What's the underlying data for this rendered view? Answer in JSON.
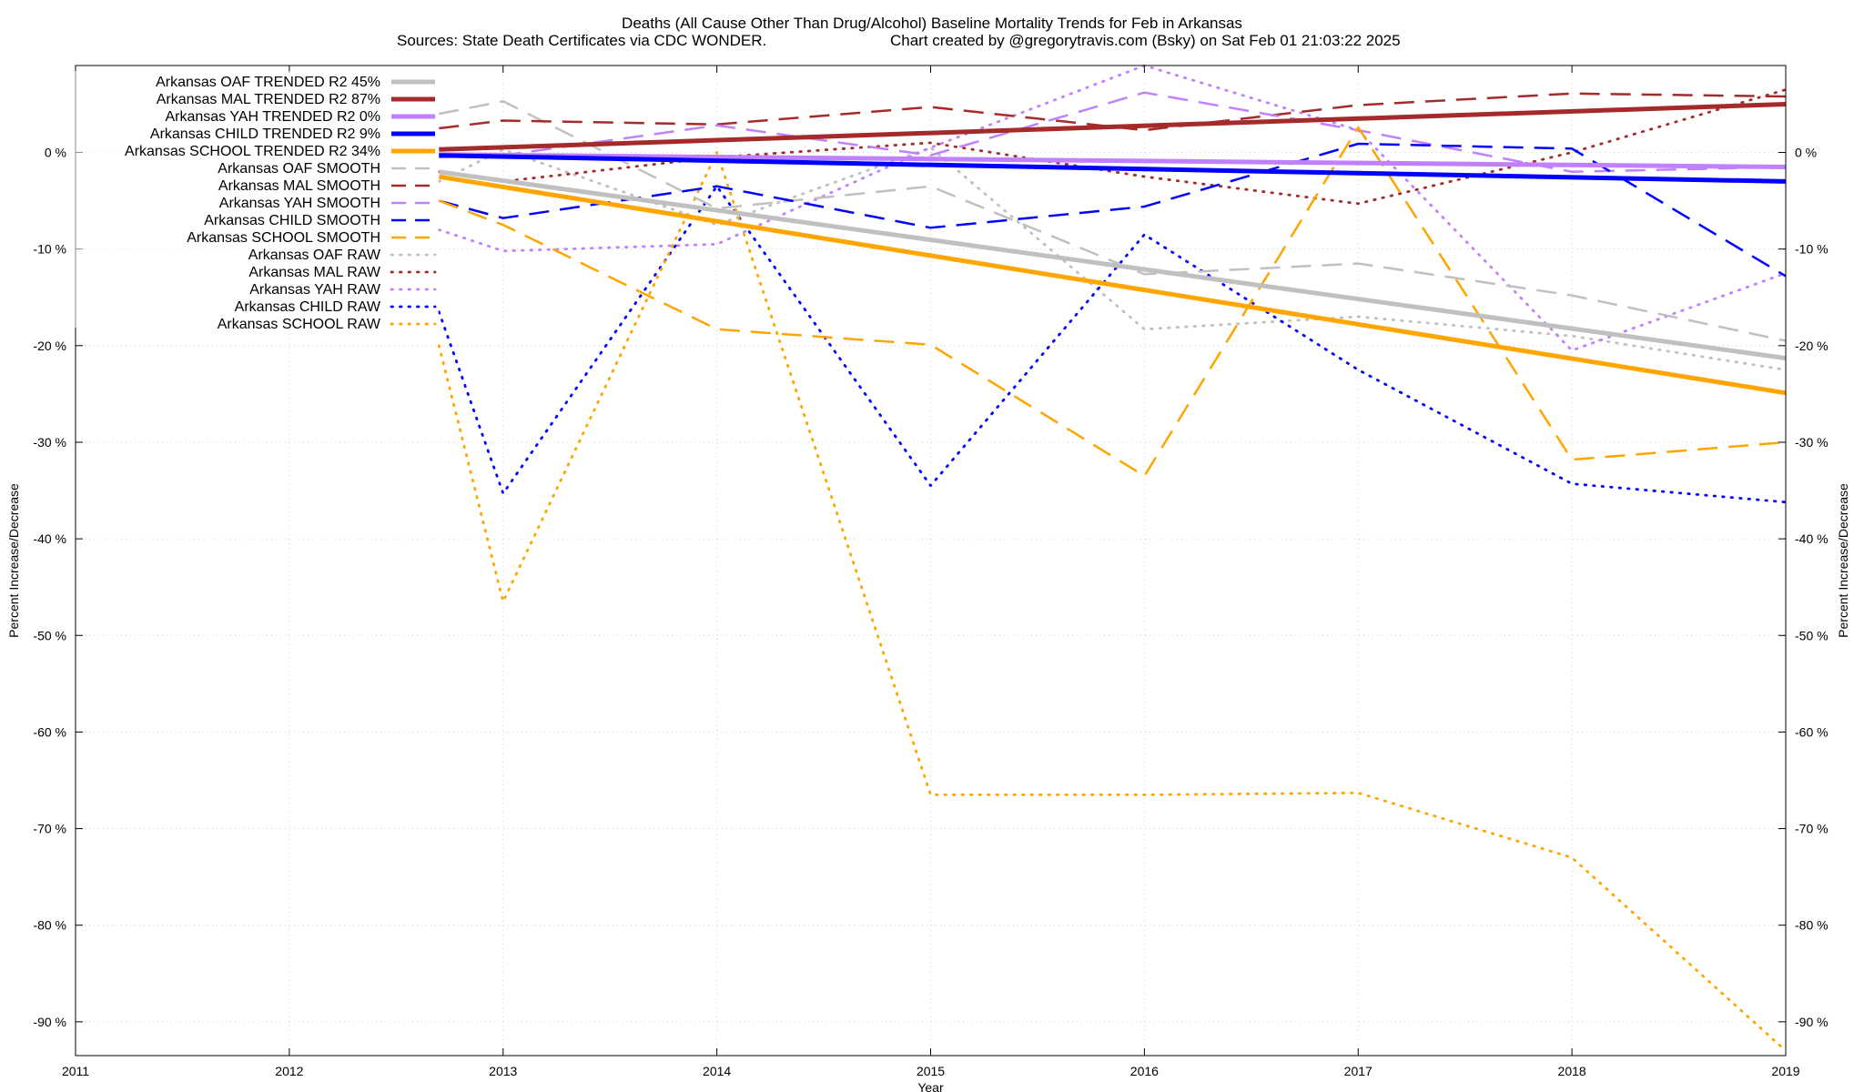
{
  "chart_data": {
    "type": "line",
    "title": "Deaths (All Cause Other Than Drug/Alcohol)  Baseline Mortality Trends for Feb in Arkansas",
    "subtitle_left": "Sources: State Death Certificates via CDC WONDER.",
    "subtitle_right": "Chart created by @gregorytravis.com (Bsky) on Sat Feb 01 21:03:22 2025",
    "xlabel": "Year",
    "ylabel": "Percent Increase/Decrease",
    "ylabel_right": "Percent Increase/Decrease",
    "xlim": [
      2011,
      2019
    ],
    "ylim": [
      -93.5,
      9
    ],
    "x_ticks": [
      "2011",
      "2012",
      "2013",
      "2014",
      "2015",
      "2016",
      "2017",
      "2018",
      "2019"
    ],
    "y_tick_values": [
      0,
      -10,
      -20,
      -30,
      -40,
      -50,
      -60,
      -70,
      -80,
      -90
    ],
    "y_tick_labels": [
      "0 %",
      "-10 %",
      "-20 %",
      "-30 %",
      "-40 %",
      "-50 %",
      "-60 %",
      "-70 %",
      "-80 %",
      "-90 %"
    ],
    "grid": true,
    "legend_position": "top-left",
    "colors": {
      "oaf": "#c0c0c0",
      "mal": "#a52a2a",
      "yah": "#c080ff",
      "child": "#0000ff",
      "school": "#ffa500"
    },
    "series": [
      {
        "name": "Arkansas OAF TRENDED R2  45%",
        "group": "oaf",
        "style": "trend",
        "x": [
          2012.7,
          2019
        ],
        "y": [
          -2.0,
          -21.3
        ]
      },
      {
        "name": "Arkansas MAL TRENDED R2  87%",
        "group": "mal",
        "style": "trend",
        "x": [
          2012.7,
          2019
        ],
        "y": [
          0.3,
          5.0
        ]
      },
      {
        "name": "Arkansas YAH TRENDED R2   0%",
        "group": "yah",
        "style": "trend",
        "x": [
          2012.7,
          2019
        ],
        "y": [
          -0.2,
          -1.5
        ]
      },
      {
        "name": "Arkansas CHILD TRENDED R2   9%",
        "group": "child",
        "style": "trend",
        "x": [
          2012.7,
          2019
        ],
        "y": [
          -0.3,
          -3.0
        ]
      },
      {
        "name": "Arkansas SCHOOL TRENDED R2  34%",
        "group": "school",
        "style": "trend",
        "x": [
          2012.7,
          2019
        ],
        "y": [
          -2.5,
          -24.9
        ]
      },
      {
        "name": "Arkansas OAF SMOOTH",
        "group": "oaf",
        "style": "smooth",
        "x": [
          2012.7,
          2013,
          2014,
          2015,
          2016,
          2017,
          2018,
          2019
        ],
        "y": [
          4.0,
          5.3,
          -5.8,
          -3.5,
          -12.6,
          -11.5,
          -14.8,
          -19.5
        ]
      },
      {
        "name": "Arkansas MAL SMOOTH",
        "group": "mal",
        "style": "smooth",
        "x": [
          2012.7,
          2013,
          2014,
          2015,
          2016,
          2017,
          2018,
          2019
        ],
        "y": [
          2.5,
          3.3,
          2.9,
          4.7,
          2.3,
          4.9,
          6.1,
          5.8
        ]
      },
      {
        "name": "Arkansas YAH SMOOTH",
        "group": "yah",
        "style": "smooth",
        "x": [
          2012.7,
          2013,
          2014,
          2015,
          2016,
          2017,
          2018,
          2019
        ],
        "y": [
          -0.5,
          -0.3,
          2.8,
          -0.3,
          6.2,
          2.3,
          -2.0,
          -1.5
        ]
      },
      {
        "name": "Arkansas CHILD SMOOTH",
        "group": "child",
        "style": "smooth",
        "x": [
          2012.7,
          2013,
          2014,
          2015,
          2016,
          2017,
          2018,
          2019
        ],
        "y": [
          -5.0,
          -6.8,
          -3.5,
          -7.8,
          -5.6,
          0.9,
          0.4,
          -12.8
        ]
      },
      {
        "name": "Arkansas SCHOOL SMOOTH",
        "group": "school",
        "style": "smooth",
        "x": [
          2012.7,
          2013,
          2014,
          2015,
          2016,
          2017,
          2018,
          2019
        ],
        "y": [
          -5.0,
          -7.5,
          -18.3,
          -19.9,
          -33.5,
          2.6,
          -31.8,
          -30.0
        ]
      },
      {
        "name": "Arkansas OAF RAW",
        "group": "oaf",
        "style": "raw",
        "x": [
          2012.7,
          2013,
          2014,
          2015,
          2016,
          2017,
          2018,
          2019
        ],
        "y": [
          -3.0,
          0.3,
          -7.5,
          0.5,
          -18.3,
          -17.0,
          -19.0,
          -22.5
        ]
      },
      {
        "name": "Arkansas MAL RAW",
        "group": "mal",
        "style": "raw",
        "x": [
          2012.7,
          2013,
          2014,
          2015,
          2016,
          2017,
          2018,
          2019
        ],
        "y": [
          -2.0,
          -3.0,
          -0.5,
          1.0,
          -2.5,
          -5.3,
          0.0,
          6.5
        ]
      },
      {
        "name": "Arkansas YAH RAW",
        "group": "yah",
        "style": "raw",
        "x": [
          2012.7,
          2013,
          2014,
          2015,
          2016,
          2017,
          2018,
          2019
        ],
        "y": [
          -8.0,
          -10.2,
          -9.5,
          0.5,
          9.0,
          2.3,
          -20.5,
          -12.5
        ]
      },
      {
        "name": "Arkansas CHILD RAW",
        "group": "child",
        "style": "raw",
        "x": [
          2012.7,
          2013,
          2014,
          2015,
          2016,
          2017,
          2018,
          2019
        ],
        "y": [
          -16.5,
          -35.3,
          -3.5,
          -34.5,
          -8.5,
          -22.5,
          -34.3,
          -36.2
        ]
      },
      {
        "name": "Arkansas SCHOOL RAW",
        "group": "school",
        "style": "raw",
        "x": [
          2012.7,
          2013,
          2014,
          2015,
          2016,
          2017,
          2018,
          2019
        ],
        "y": [
          -20.0,
          -46.5,
          0.0,
          -66.5,
          -66.5,
          -66.3,
          -73.0,
          -93.0
        ]
      }
    ]
  }
}
